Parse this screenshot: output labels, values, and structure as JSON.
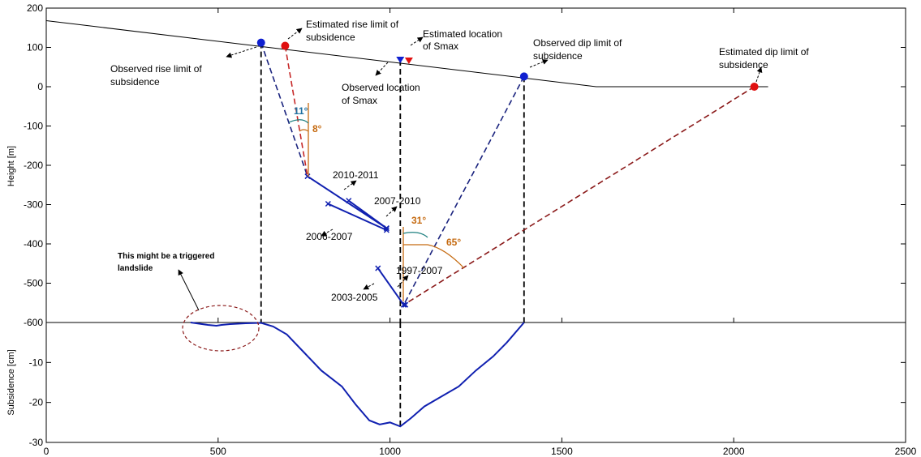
{
  "chart_data": [
    {
      "type": "line",
      "name": "profile",
      "ylabel": "Height [m]",
      "xlim": [
        0,
        2500
      ],
      "ylim": [
        -600,
        200
      ],
      "xticks": [
        0,
        500,
        1000,
        1500,
        2000,
        2500
      ],
      "yticks": [
        200,
        100,
        0,
        -100,
        -200,
        -300,
        -400,
        -500,
        -600
      ],
      "surface": {
        "x": [
          0,
          1600,
          2100
        ],
        "y": [
          168,
          0,
          0
        ]
      },
      "points": [
        {
          "x": 625,
          "y": 112,
          "color": "#1020d0",
          "marker": "circle"
        },
        {
          "x": 695,
          "y": 104,
          "color": "#e01010",
          "marker": "circle"
        },
        {
          "x": 1030,
          "y": 68,
          "color": "#1020d0",
          "marker": "triangle"
        },
        {
          "x": 1055,
          "y": 66,
          "color": "#e01010",
          "marker": "triangle"
        },
        {
          "x": 1390,
          "y": 26,
          "color": "#1020d0",
          "marker": "circle"
        },
        {
          "x": 2060,
          "y": 0,
          "color": "#e01010",
          "marker": "circle"
        }
      ],
      "sources": [
        {
          "label": "2010-2011",
          "path": [
            [
              760,
              -228
            ],
            [
              990,
              -360
            ]
          ]
        },
        {
          "label": "2007-2010",
          "path": [
            [
              880,
              -290
            ],
            [
              990,
              -360
            ]
          ]
        },
        {
          "label": "2006-2007",
          "path": [
            [
              820,
              -298
            ],
            [
              990,
              -365
            ]
          ]
        },
        {
          "label": "2003-2005",
          "path": [
            [
              965,
              -462
            ],
            [
              1040,
              -555
            ]
          ]
        },
        {
          "label": "1997-2007",
          "path": [
            [
              1040,
              -555
            ],
            [
              1045,
              -555
            ]
          ]
        }
      ],
      "connections": [
        {
          "from": [
            625,
            112
          ],
          "to": [
            760,
            -228
          ],
          "color": "#1a237e",
          "style": "dashed"
        },
        {
          "from": [
            695,
            104
          ],
          "to": [
            760,
            -228
          ],
          "color": "#c62828",
          "style": "dashed"
        },
        {
          "from": [
            1390,
            26
          ],
          "to": [
            1040,
            -555
          ],
          "color": "#1a237e",
          "style": "dashed"
        },
        {
          "from": [
            2060,
            0
          ],
          "to": [
            1040,
            -555
          ],
          "color": "#8b1a1a",
          "style": "dashed"
        }
      ],
      "angles": [
        "11°",
        "8°",
        "31°",
        "65°"
      ],
      "annotations": [
        "Estimated rise limit of subsidence",
        "Observed rise limit of subsidence",
        "Estimated location of Smax",
        "Observed location of Smax",
        "Observed dip limit of subsidence",
        "Estimated dip limit of subsidence",
        "This might be a triggered landslide"
      ]
    },
    {
      "type": "line",
      "name": "subsidence",
      "ylabel": "Subsidence [cm]",
      "xlim": [
        0,
        2500
      ],
      "ylim": [
        -30,
        0
      ],
      "yticks": [
        -10,
        -20,
        -30
      ],
      "x": [
        420,
        470,
        495,
        510,
        535,
        580,
        625,
        660,
        700,
        750,
        800,
        860,
        900,
        940,
        970,
        1000,
        1030,
        1060,
        1100,
        1150,
        1200,
        1250,
        1300,
        1340,
        1370,
        1390
      ],
      "y": [
        0,
        -0.6,
        -0.8,
        -0.6,
        -0.4,
        -0.2,
        -0.1,
        -1.0,
        -3.0,
        -7.5,
        -12.0,
        -16.0,
        -20.5,
        -24.5,
        -25.5,
        -25.0,
        -26.0,
        -24.0,
        -21.0,
        -18.5,
        -16.0,
        -12.0,
        -8.5,
        -5.0,
        -2.0,
        0
      ]
    }
  ]
}
